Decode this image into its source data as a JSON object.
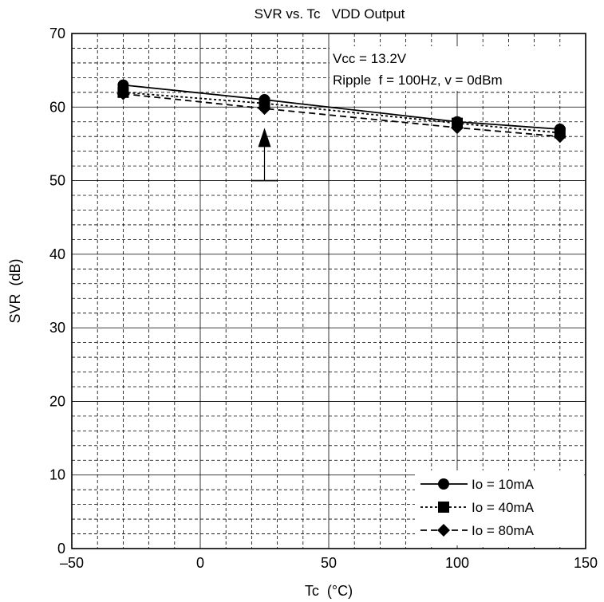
{
  "chart_data": {
    "type": "line",
    "title": "SVR vs. Tc   VDD Output",
    "xlabel": "Tc  (°C)",
    "ylabel": "SVR  (dB)",
    "xlim": [
      -50,
      150
    ],
    "ylim": [
      0,
      70
    ],
    "x_ticks": [
      -50,
      0,
      50,
      100,
      150
    ],
    "x_tick_labels": [
      "–50",
      "0",
      "50",
      "100",
      "150"
    ],
    "y_ticks": [
      0,
      10,
      20,
      30,
      40,
      50,
      60,
      70
    ],
    "y_tick_labels": [
      "0",
      "10",
      "20",
      "30",
      "40",
      "50",
      "60",
      "70"
    ],
    "x_minor_step": 10,
    "y_minor_step": 2,
    "grid": true,
    "annotations": [
      "Vcc = 13.2V",
      "Ripple  f = 100Hz, v = 0dBm"
    ],
    "arrow": {
      "x": 25,
      "y_from": 50,
      "y_to": 55
    },
    "legend_position": "bottom-right",
    "series": [
      {
        "name": "Io = 10mA",
        "marker": "circle",
        "line": "solid",
        "x": [
          -30,
          25,
          100,
          140
        ],
        "y": [
          63,
          61,
          58,
          57
        ]
      },
      {
        "name": "Io = 40mA",
        "marker": "square",
        "line": "dotted",
        "x": [
          -30,
          25,
          100,
          140
        ],
        "y": [
          62,
          60.5,
          57.8,
          56.5
        ]
      },
      {
        "name": "Io = 80mA",
        "marker": "diamond",
        "line": "dashed",
        "x": [
          -30,
          25,
          100,
          140
        ],
        "y": [
          61.8,
          59.8,
          57.2,
          56
        ]
      }
    ]
  }
}
